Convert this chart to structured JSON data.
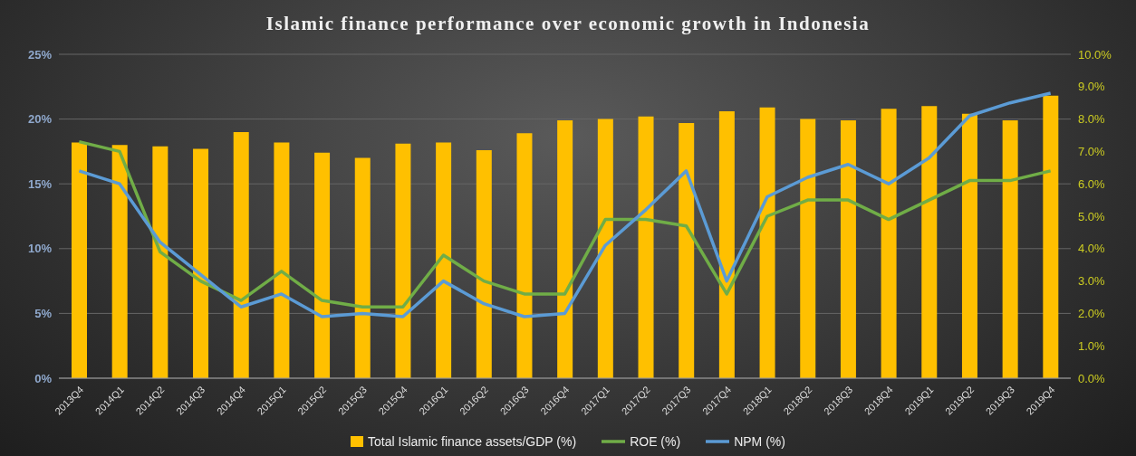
{
  "chart_data": {
    "type": "bar",
    "title": "Islamic finance performance over economic growth in Indonesia",
    "categories": [
      "2013Q4",
      "2014Q1",
      "2014Q2",
      "2014Q3",
      "2014Q4",
      "2015Q1",
      "2015Q2",
      "2015Q3",
      "2015Q4",
      "2016Q1",
      "2016Q2",
      "2016Q3",
      "2016Q4",
      "2017Q1",
      "2017Q2",
      "2017Q3",
      "2017Q4",
      "2018Q1",
      "2018Q2",
      "2018Q3",
      "2018Q4",
      "2019Q1",
      "2019Q2",
      "2019Q3",
      "2019Q4"
    ],
    "series": [
      {
        "name": "Total Islamic finance assets/GDP (%)",
        "color": "#ffc000",
        "values": [
          18.2,
          18.0,
          17.9,
          17.7,
          19.0,
          18.2,
          17.4,
          17.0,
          18.1,
          18.2,
          17.6,
          18.9,
          19.9,
          20.0,
          20.2,
          19.7,
          20.6,
          20.9,
          20.0,
          19.9,
          20.8,
          21.0,
          20.4,
          19.9,
          21.8
        ]
      },
      {
        "name": "ROE (%)",
        "type": "line",
        "axis": "y2",
        "color": "#70ad47",
        "values": [
          7.3,
          7.0,
          3.9,
          3.0,
          2.4,
          3.3,
          2.4,
          2.2,
          2.2,
          3.8,
          3.0,
          2.6,
          2.6,
          4.9,
          4.9,
          4.7,
          2.6,
          5.0,
          5.5,
          5.5,
          4.9,
          5.5,
          6.1,
          6.1,
          6.4
        ]
      },
      {
        "name": "NPM (%)",
        "type": "line",
        "axis": "y2",
        "color": "#5b9bd5",
        "values": [
          6.4,
          6.0,
          4.2,
          3.2,
          2.2,
          2.6,
          1.9,
          2.0,
          1.9,
          3.0,
          2.3,
          1.9,
          2.0,
          4.1,
          5.2,
          6.4,
          3.0,
          5.6,
          6.2,
          6.6,
          6.0,
          6.8,
          8.1,
          8.5,
          8.8
        ]
      }
    ],
    "ylim": [
      0,
      25
    ],
    "yticks": [
      {
        "value": 0,
        "label": "0%"
      },
      {
        "value": 5,
        "label": "5%"
      },
      {
        "value": 10,
        "label": "10%"
      },
      {
        "value": 15,
        "label": "15%"
      },
      {
        "value": 20,
        "label": "20%"
      },
      {
        "value": 25,
        "label": "25%"
      }
    ],
    "y2lim": [
      0,
      10
    ],
    "y2ticks": [
      {
        "value": 0,
        "label": "0.0%"
      },
      {
        "value": 1,
        "label": "1.0%"
      },
      {
        "value": 2,
        "label": "2.0%"
      },
      {
        "value": 3,
        "label": "3.0%"
      },
      {
        "value": 4,
        "label": "4.0%"
      },
      {
        "value": 5,
        "label": "5.0%"
      },
      {
        "value": 6,
        "label": "6.0%"
      },
      {
        "value": 7,
        "label": "7.0%"
      },
      {
        "value": 8,
        "label": "8.0%"
      },
      {
        "value": 9,
        "label": "9.0%"
      },
      {
        "value": 10,
        "label": "10.0%"
      }
    ],
    "grid": "y",
    "legend": "bottom",
    "marker": "none",
    "line_style": "solid"
  }
}
